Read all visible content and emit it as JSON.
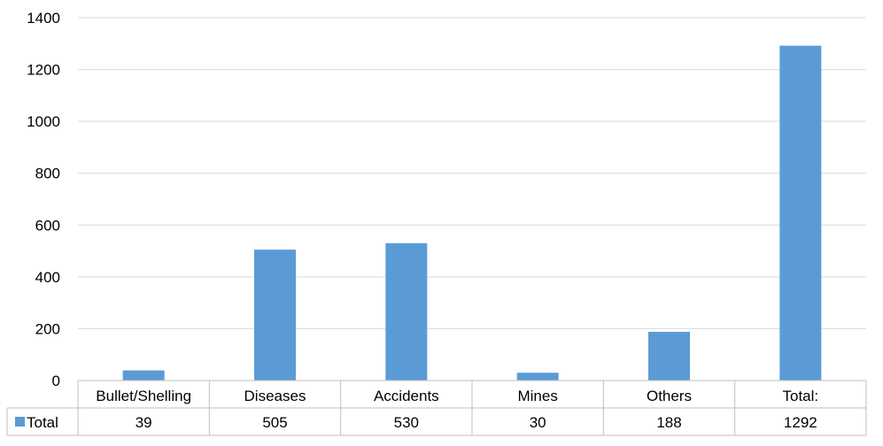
{
  "chart_data": {
    "type": "bar",
    "categories": [
      "Bullet/Shelling",
      "Diseases",
      "Accidents",
      "Mines",
      "Others",
      "Total:"
    ],
    "series": [
      {
        "name": "Total",
        "values": [
          39,
          505,
          530,
          30,
          188,
          1292
        ],
        "color": "#5B9BD5"
      }
    ],
    "ylim": [
      0,
      1400
    ],
    "yticks": [
      0,
      200,
      400,
      600,
      800,
      1000,
      1200,
      1400
    ],
    "grid": true,
    "data_table": true
  },
  "colors": {
    "bar": "#5B9BD5",
    "grid": "#D9D9D9",
    "table_border": "#BFBFBF"
  }
}
